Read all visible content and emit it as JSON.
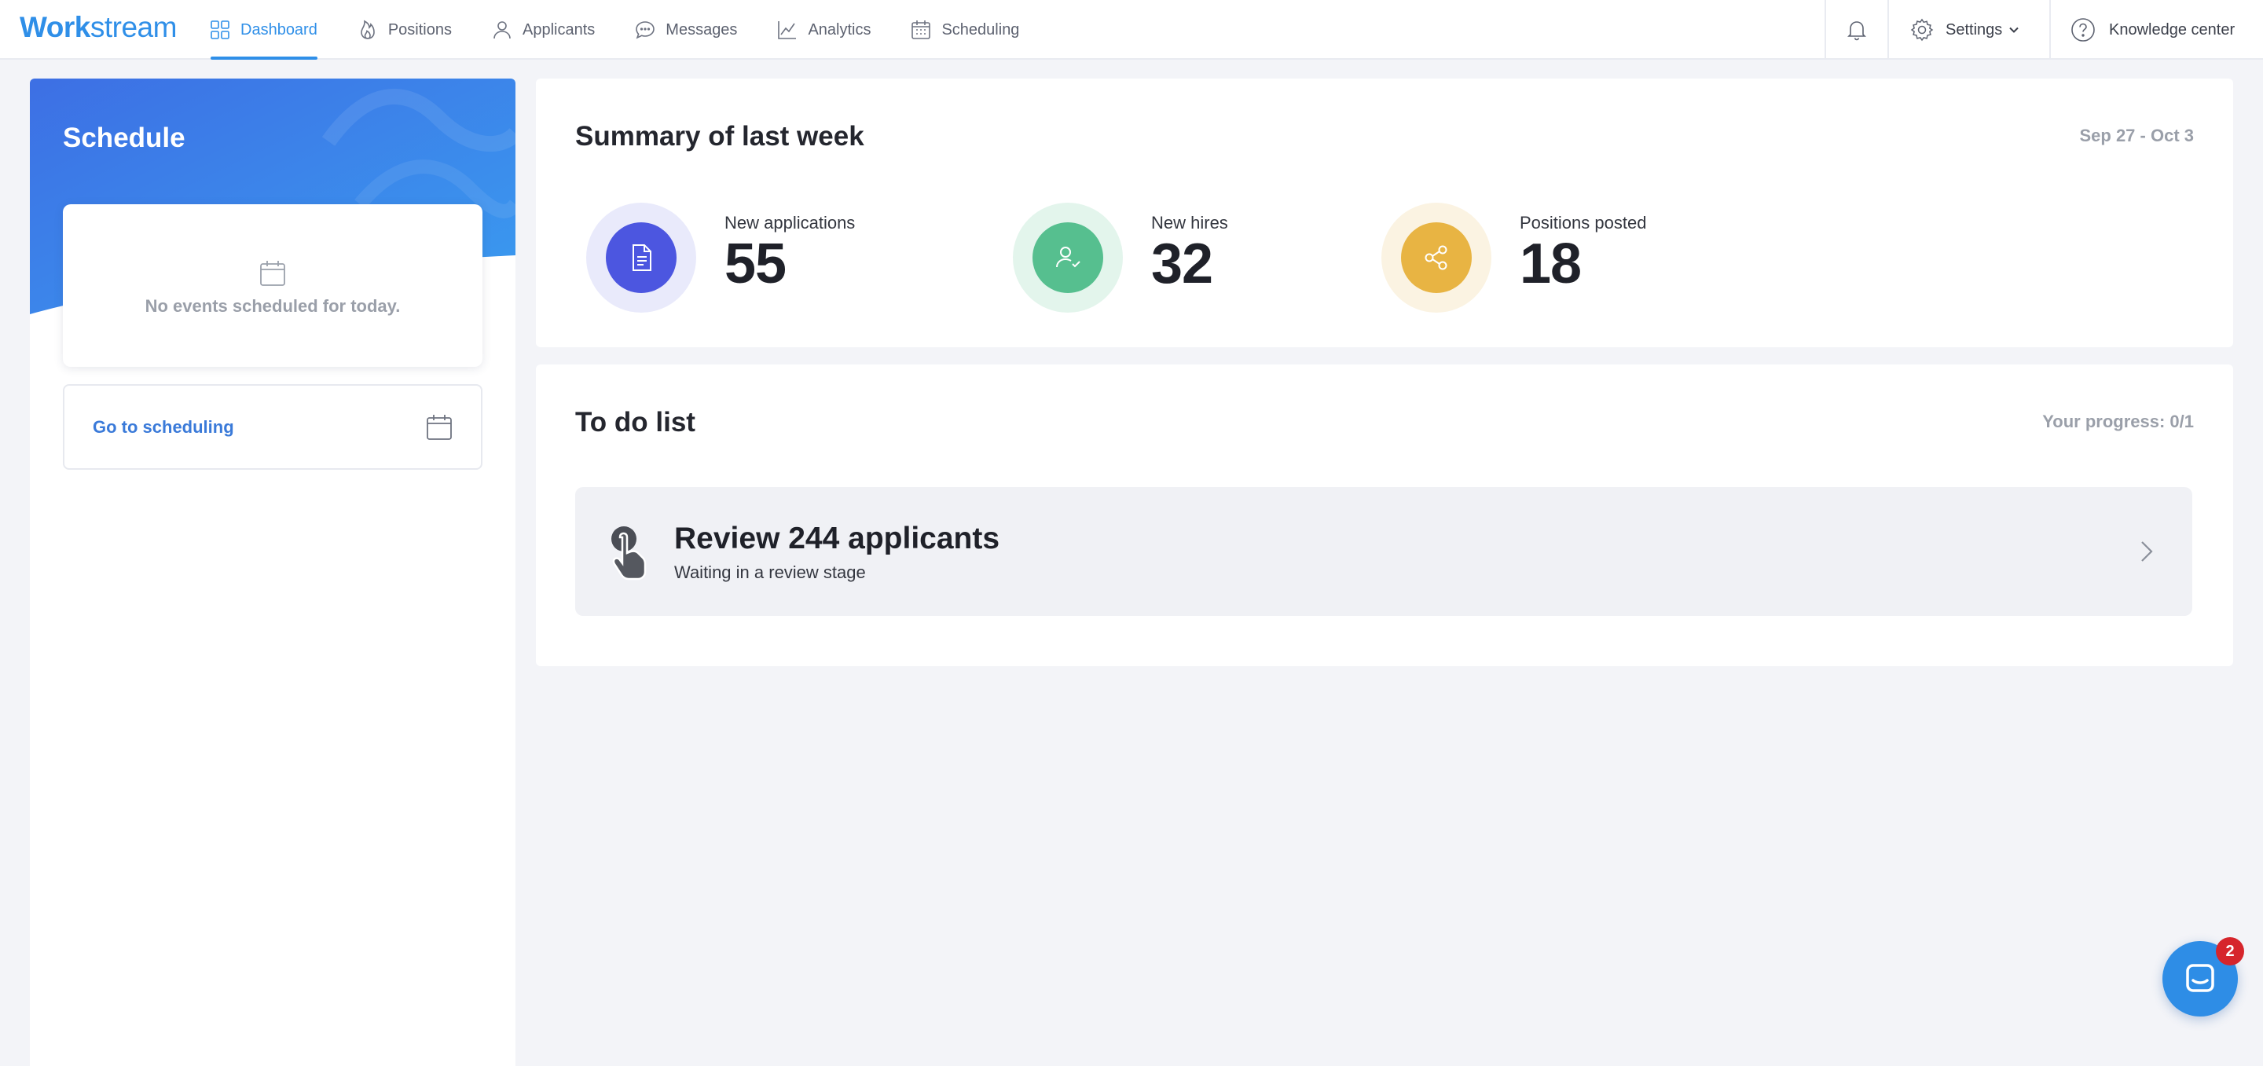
{
  "brand": {
    "logo_bold": "Work",
    "logo_light": "stream",
    "color": "#2f8fe8"
  },
  "nav": {
    "items": [
      {
        "label": "Dashboard",
        "icon": "dashboard-icon",
        "active": true
      },
      {
        "label": "Positions",
        "icon": "flame-icon",
        "active": false
      },
      {
        "label": "Applicants",
        "icon": "user-icon",
        "active": false
      },
      {
        "label": "Messages",
        "icon": "chat-icon",
        "active": false
      },
      {
        "label": "Analytics",
        "icon": "chart-line-icon",
        "active": false
      },
      {
        "label": "Scheduling",
        "icon": "calendar-icon",
        "active": false
      }
    ]
  },
  "header": {
    "notifications_icon": "bell-icon",
    "settings_label": "Settings",
    "knowledge_label": "Knowledge center"
  },
  "schedule": {
    "title": "Schedule",
    "empty_text": "No events scheduled for today.",
    "goto_label": "Go to scheduling"
  },
  "summary": {
    "title": "Summary of last week",
    "date_range": "Sep 27 - Oct 3",
    "stats": [
      {
        "label": "New applications",
        "value": "55",
        "color": "#4c56e0",
        "ring": "#e9eafb",
        "icon": "document-icon"
      },
      {
        "label": "New hires",
        "value": "32",
        "color": "#56bf8f",
        "ring": "#e3f5ec",
        "icon": "user-check-icon"
      },
      {
        "label": "Positions posted",
        "value": "18",
        "color": "#e8b443",
        "ring": "#fbf3e2",
        "icon": "share-icon"
      }
    ]
  },
  "todo": {
    "title": "To do list",
    "progress": "Your progress: 0/1",
    "items": [
      {
        "title": "Review 244 applicants",
        "subtitle": "Waiting in a review stage",
        "icon": "hand-pointer-icon"
      }
    ]
  },
  "chat": {
    "badge": "2",
    "icon": "chat-bubble-icon"
  }
}
